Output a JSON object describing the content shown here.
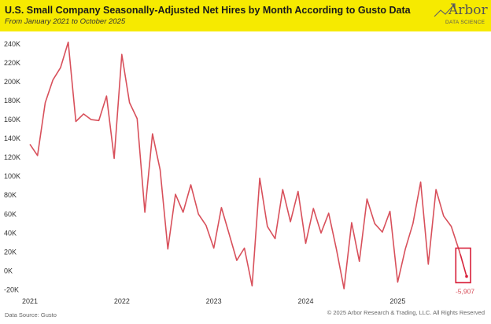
{
  "header": {
    "title": "U.S. Small Company Seasonally-Adjusted Net Hires by Month According to Gusto Data",
    "subtitle": "From January 2021 to October 2025",
    "logo_word": "Arbor",
    "logo_tag": "DATA SCIENCE"
  },
  "footer": {
    "source": "Data Source: Gusto",
    "rights": "© 2025 Arbor Research & Trading, LLC. All Rights Reserved"
  },
  "colors": {
    "line": "#d8505b",
    "highlight": "#d81f3a",
    "band": "#f6ea00"
  },
  "chart_data": {
    "type": "line",
    "title": "U.S. Small Company Seasonally-Adjusted Net Hires by Month According to Gusto Data",
    "subtitle": "From January 2021 to October 2025",
    "xlabel": "",
    "ylabel": "",
    "ylim": [
      -28000,
      250000
    ],
    "yticks": [
      -20000,
      0,
      20000,
      40000,
      60000,
      80000,
      100000,
      120000,
      140000,
      160000,
      180000,
      200000,
      220000,
      240000
    ],
    "ytick_labels": [
      "-20K",
      "0K",
      "20K",
      "40K",
      "60K",
      "80K",
      "100K",
      "120K",
      "140K",
      "160K",
      "180K",
      "200K",
      "220K",
      "240K"
    ],
    "xtick_labels": [
      "2021",
      "2022",
      "2023",
      "2024",
      "2025"
    ],
    "xtick_months": [
      "2021-01",
      "2022-01",
      "2023-01",
      "2024-01",
      "2025-01"
    ],
    "grid": false,
    "x": [
      "2021-01",
      "2021-02",
      "2021-03",
      "2021-04",
      "2021-05",
      "2021-06",
      "2021-07",
      "2021-08",
      "2021-09",
      "2021-10",
      "2021-11",
      "2021-12",
      "2022-01",
      "2022-02",
      "2022-03",
      "2022-04",
      "2022-05",
      "2022-06",
      "2022-07",
      "2022-08",
      "2022-09",
      "2022-10",
      "2022-11",
      "2022-12",
      "2023-01",
      "2023-02",
      "2023-03",
      "2023-04",
      "2023-05",
      "2023-06",
      "2023-07",
      "2023-08",
      "2023-09",
      "2023-10",
      "2023-11",
      "2023-12",
      "2024-01",
      "2024-02",
      "2024-03",
      "2024-04",
      "2024-05",
      "2024-06",
      "2024-07",
      "2024-08",
      "2024-09",
      "2024-10",
      "2024-11",
      "2024-12",
      "2025-01",
      "2025-02",
      "2025-03",
      "2025-04",
      "2025-05",
      "2025-06",
      "2025-07",
      "2025-08",
      "2025-09",
      "2025-10"
    ],
    "series": [
      {
        "values": [
          134000,
          122000,
          178000,
          202000,
          215000,
          242000,
          158000,
          166000,
          160000,
          159000,
          185000,
          119000,
          229000,
          178000,
          161000,
          62000,
          145000,
          107000,
          23000,
          81000,
          62000,
          91000,
          60000,
          48000,
          24000,
          67000,
          39000,
          11000,
          24000,
          -16000,
          98000,
          47000,
          34000,
          86000,
          52000,
          84000,
          29000,
          66000,
          40000,
          61000,
          23000,
          -19000,
          51000,
          10000,
          76000,
          50000,
          41000,
          63000,
          -12000,
          23000,
          50000,
          94000,
          7000,
          86000,
          58000,
          47000,
          22000,
          -5907
        ]
      }
    ],
    "annotations": [
      {
        "x": "2025-10",
        "label": "-5,907"
      }
    ]
  }
}
